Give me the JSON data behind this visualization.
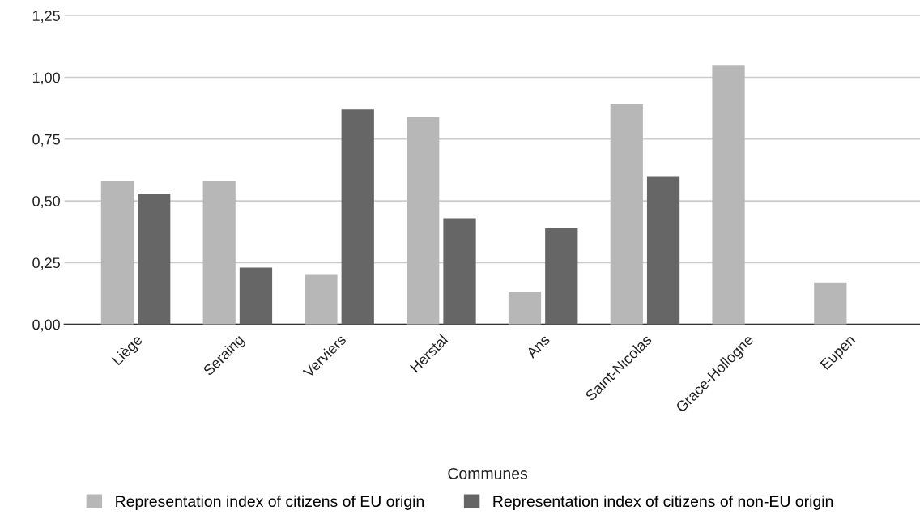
{
  "chart_data": {
    "type": "bar",
    "xlabel": "Communes",
    "categories": [
      "Liège",
      "Seraing",
      "Verviers",
      "Herstal",
      "Ans",
      "Saint-Nicolas",
      "Grace-Hollogne",
      "Eupen"
    ],
    "series": [
      {
        "name": "Representation index of citizens of EU origin",
        "color": "#b7b7b7",
        "values": [
          0.58,
          0.58,
          0.2,
          0.84,
          0.13,
          0.89,
          1.05,
          0.17
        ]
      },
      {
        "name": "Representation index of citizens of non-EU origin",
        "color": "#666666",
        "values": [
          0.53,
          0.23,
          0.87,
          0.43,
          0.39,
          0.6,
          null,
          null
        ]
      }
    ],
    "ylim": [
      0,
      1.25
    ],
    "yticks": [
      {
        "value": 0,
        "label": "0,00"
      },
      {
        "value": 0.25,
        "label": "0,25"
      },
      {
        "value": 0.5,
        "label": "0,50"
      },
      {
        "value": 0.75,
        "label": "0,75"
      },
      {
        "value": 1.0,
        "label": "1,00"
      },
      {
        "value": 1.25,
        "label": "1,25"
      }
    ],
    "grid": "y",
    "legend": "bottom"
  }
}
